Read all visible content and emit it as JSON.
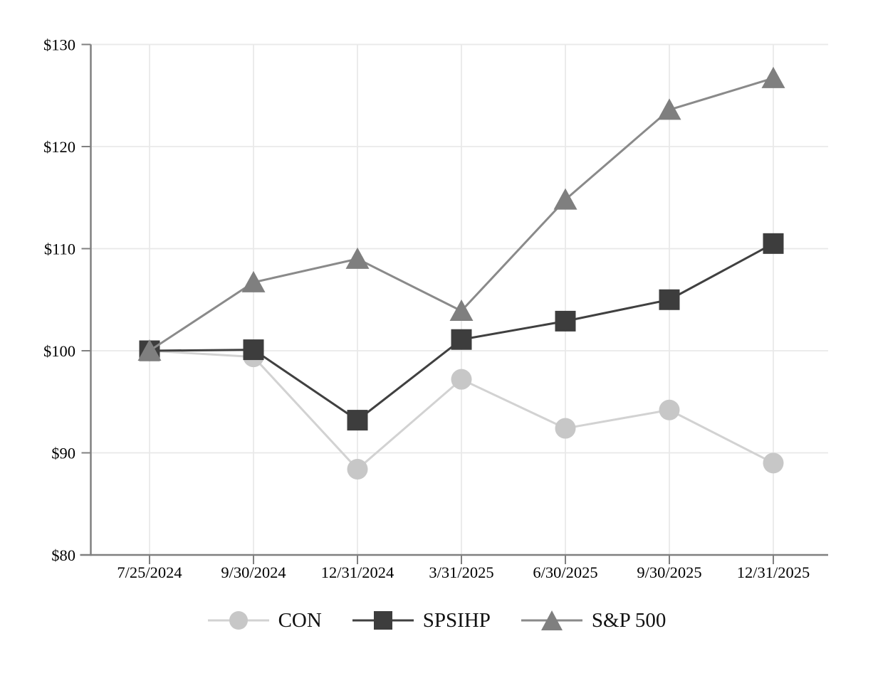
{
  "page": {
    "background": "#ffffff"
  },
  "chart_data": {
    "type": "line",
    "title": "",
    "xlabel": "",
    "ylabel": "",
    "categories": [
      "7/25/2024",
      "9/30/2024",
      "12/31/2024",
      "3/31/2025",
      "6/30/2025",
      "9/30/2025",
      "12/31/2025"
    ],
    "y_ticks": [
      {
        "value": 80,
        "label": "$80"
      },
      {
        "value": 90,
        "label": "$90"
      },
      {
        "value": 100,
        "label": "$100"
      },
      {
        "value": 110,
        "label": "$110"
      },
      {
        "value": 120,
        "label": "$120"
      },
      {
        "value": 130,
        "label": "$130"
      }
    ],
    "ylim": [
      80,
      130
    ],
    "grid": true,
    "legend_position": "bottom-center",
    "series": [
      {
        "name": "CON",
        "marker": "circle",
        "marker_color": "#c7c7c7",
        "line_color": "#d2d2d2",
        "values": [
          100.0,
          99.4,
          88.4,
          97.2,
          92.4,
          94.2,
          89.0
        ]
      },
      {
        "name": "SPSIHP",
        "marker": "square",
        "marker_color": "#3d3d3d",
        "line_color": "#404040",
        "values": [
          100.0,
          100.1,
          93.2,
          101.1,
          102.9,
          105.0,
          110.5
        ]
      },
      {
        "name": "S&P 500",
        "marker": "triangle",
        "marker_color": "#7f7f7f",
        "line_color": "#8a8a8a",
        "values": [
          100.0,
          106.7,
          109.0,
          103.9,
          114.8,
          123.6,
          126.7
        ]
      }
    ],
    "colors": {
      "axis": "#808080",
      "grid": "#e9e9e9",
      "text": "#000000",
      "background": "#ffffff"
    }
  }
}
